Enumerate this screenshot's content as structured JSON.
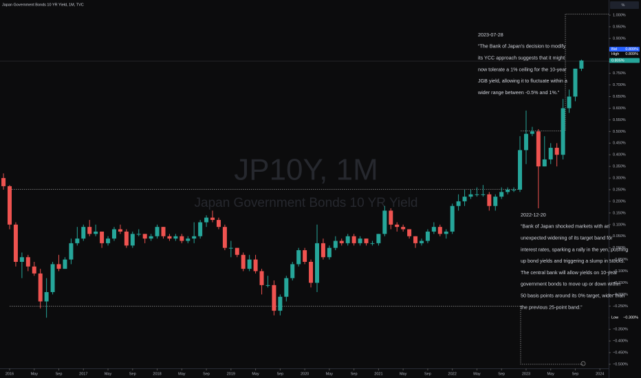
{
  "chart_data": {
    "type": "candlestick",
    "title": "Japan Government Bonds 10 YR Yield, 1M, TVC",
    "watermark": [
      "JP10Y, 1M",
      "Japan Government Bonds 10 YR Yield"
    ],
    "axis_unit": "%",
    "categories": [
      "2015-12",
      "2016-01",
      "2016-02",
      "2016-03",
      "2016-04",
      "2016-05",
      "2016-06",
      "2016-07",
      "2016-08",
      "2016-09",
      "2016-10",
      "2016-11",
      "2016-12",
      "2017-01",
      "2017-02",
      "2017-03",
      "2017-04",
      "2017-05",
      "2017-06",
      "2017-07",
      "2017-08",
      "2017-09",
      "2017-10",
      "2017-11",
      "2017-12",
      "2018-01",
      "2018-02",
      "2018-03",
      "2018-04",
      "2018-05",
      "2018-06",
      "2018-07",
      "2018-08",
      "2018-09",
      "2018-10",
      "2018-11",
      "2018-12",
      "2019-01",
      "2019-02",
      "2019-03",
      "2019-04",
      "2019-05",
      "2019-06",
      "2019-07",
      "2019-08",
      "2019-09",
      "2019-10",
      "2019-11",
      "2019-12",
      "2020-01",
      "2020-02",
      "2020-03",
      "2020-04",
      "2020-05",
      "2020-06",
      "2020-07",
      "2020-08",
      "2020-09",
      "2020-10",
      "2020-11",
      "2020-12",
      "2021-01",
      "2021-02",
      "2021-03",
      "2021-04",
      "2021-05",
      "2021-06",
      "2021-07",
      "2021-08",
      "2021-09",
      "2021-10",
      "2021-11",
      "2021-12",
      "2022-01",
      "2022-02",
      "2022-03",
      "2022-04",
      "2022-05",
      "2022-06",
      "2022-07",
      "2022-08",
      "2022-09",
      "2022-10",
      "2022-11",
      "2022-12",
      "2023-01",
      "2023-02",
      "2023-03",
      "2023-04",
      "2023-05",
      "2023-06",
      "2023-07",
      "2023-08",
      "2023-09",
      "2023-10"
    ],
    "open": [
      0.3,
      0.265,
      0.1,
      -0.06,
      -0.04,
      -0.08,
      -0.11,
      -0.23,
      -0.19,
      -0.07,
      -0.09,
      -0.05,
      0.02,
      0.04,
      0.09,
      0.06,
      0.07,
      0.02,
      0.04,
      0.08,
      0.07,
      0.01,
      0.06,
      0.06,
      0.04,
      0.05,
      0.09,
      0.05,
      0.04,
      0.05,
      0.03,
      0.04,
      0.05,
      0.11,
      0.13,
      0.12,
      0.09,
      0.0,
      0.0,
      -0.03,
      -0.09,
      -0.05,
      -0.1,
      -0.16,
      -0.16,
      -0.27,
      -0.21,
      -0.13,
      -0.07,
      -0.01,
      -0.06,
      -0.15,
      0.02,
      -0.04,
      0.0,
      0.03,
      0.02,
      0.05,
      0.02,
      0.04,
      0.02,
      0.02,
      0.06,
      0.16,
      0.1,
      0.09,
      0.08,
      0.05,
      0.02,
      0.03,
      0.07,
      0.09,
      0.06,
      0.07,
      0.18,
      0.2,
      0.22,
      0.23,
      0.23,
      0.23,
      0.18,
      0.22,
      0.24,
      0.25,
      0.25,
      0.42,
      0.49,
      0.5,
      0.35,
      0.38,
      0.43,
      0.4,
      0.6,
      0.65,
      0.77
    ],
    "high": [
      0.32,
      0.27,
      0.11,
      -0.02,
      -0.03,
      -0.06,
      -0.09,
      -0.13,
      -0.06,
      -0.03,
      -0.04,
      0.04,
      0.09,
      0.1,
      0.12,
      0.1,
      0.07,
      0.05,
      0.09,
      0.1,
      0.08,
      0.07,
      0.08,
      0.06,
      0.06,
      0.1,
      0.09,
      0.06,
      0.06,
      0.06,
      0.05,
      0.11,
      0.12,
      0.14,
      0.16,
      0.13,
      0.1,
      0.03,
      0.0,
      -0.02,
      -0.03,
      -0.03,
      -0.09,
      -0.12,
      -0.14,
      -0.2,
      -0.12,
      -0.06,
      0.0,
      0.0,
      -0.05,
      0.1,
      0.04,
      0.01,
      0.05,
      0.04,
      0.06,
      0.06,
      0.05,
      0.04,
      0.03,
      0.06,
      0.18,
      0.17,
      0.11,
      0.1,
      0.08,
      0.05,
      0.04,
      0.08,
      0.11,
      0.1,
      0.08,
      0.19,
      0.23,
      0.25,
      0.25,
      0.26,
      0.27,
      0.24,
      0.23,
      0.26,
      0.26,
      0.26,
      0.48,
      0.59,
      0.52,
      0.51,
      0.48,
      0.45,
      0.45,
      0.64,
      0.68,
      0.77,
      0.809
    ],
    "low": [
      0.25,
      0.08,
      -0.08,
      -0.13,
      -0.1,
      -0.12,
      -0.26,
      -0.3,
      -0.2,
      -0.1,
      -0.09,
      -0.07,
      0.01,
      0.03,
      0.05,
      0.05,
      0.0,
      0.01,
      0.03,
      0.06,
      0.0,
      0.0,
      0.05,
      0.02,
      0.03,
      0.04,
      0.04,
      0.03,
      0.03,
      0.02,
      0.02,
      0.02,
      0.04,
      0.09,
      0.11,
      0.08,
      -0.01,
      -0.04,
      -0.04,
      -0.1,
      -0.1,
      -0.11,
      -0.2,
      -0.17,
      -0.29,
      -0.29,
      -0.23,
      -0.14,
      -0.08,
      -0.07,
      -0.17,
      -0.19,
      -0.05,
      -0.05,
      -0.01,
      0.01,
      0.01,
      0.01,
      0.01,
      0.01,
      0.01,
      0.01,
      0.05,
      0.08,
      0.07,
      0.07,
      0.04,
      0.0,
      0.01,
      0.02,
      0.06,
      0.05,
      0.04,
      0.06,
      0.16,
      0.18,
      0.21,
      0.22,
      0.22,
      0.16,
      0.16,
      0.21,
      0.23,
      0.24,
      0.24,
      0.36,
      0.48,
      0.17,
      0.35,
      0.36,
      0.35,
      0.38,
      0.58,
      0.63,
      0.76
    ],
    "close": [
      0.265,
      0.1,
      -0.06,
      -0.04,
      -0.08,
      -0.11,
      -0.23,
      -0.19,
      -0.07,
      -0.09,
      -0.05,
      0.02,
      0.04,
      0.09,
      0.06,
      0.07,
      0.02,
      0.04,
      0.08,
      0.07,
      0.01,
      0.06,
      0.06,
      0.04,
      0.05,
      0.09,
      0.05,
      0.04,
      0.05,
      0.03,
      0.04,
      0.05,
      0.11,
      0.13,
      0.12,
      0.09,
      0.0,
      0.0,
      -0.03,
      -0.09,
      -0.05,
      -0.1,
      -0.16,
      -0.16,
      -0.27,
      -0.21,
      -0.13,
      -0.07,
      -0.01,
      -0.06,
      -0.15,
      0.02,
      -0.04,
      0.0,
      0.03,
      0.02,
      0.05,
      0.02,
      0.04,
      0.02,
      0.02,
      0.06,
      0.16,
      0.1,
      0.09,
      0.08,
      0.05,
      0.02,
      0.03,
      0.07,
      0.09,
      0.06,
      0.07,
      0.18,
      0.2,
      0.22,
      0.23,
      0.23,
      0.23,
      0.18,
      0.22,
      0.24,
      0.25,
      0.25,
      0.42,
      0.49,
      0.5,
      0.35,
      0.38,
      0.43,
      0.4,
      0.6,
      0.65,
      0.77,
      0.805
    ],
    "up_color": "#26a69a",
    "down_color": "#ef5350",
    "ylim": [
      -0.5,
      1.0
    ],
    "yticks": [
      {
        "value": 1.0,
        "label": "1.000%"
      },
      {
        "value": 0.95,
        "label": "0.950%"
      },
      {
        "value": 0.9,
        "label": "0.900%"
      },
      {
        "value": 0.85,
        "label": "0.850%"
      },
      {
        "value": 0.8,
        "label": "0.800%"
      },
      {
        "value": 0.75,
        "label": "0.750%"
      },
      {
        "value": 0.7,
        "label": "0.700%"
      },
      {
        "value": 0.65,
        "label": "0.650%"
      },
      {
        "value": 0.6,
        "label": "0.600%"
      },
      {
        "value": 0.55,
        "label": "0.550%"
      },
      {
        "value": 0.5,
        "label": "0.500%"
      },
      {
        "value": 0.45,
        "label": "0.450%"
      },
      {
        "value": 0.4,
        "label": "0.400%"
      },
      {
        "value": 0.35,
        "label": "0.350%"
      },
      {
        "value": 0.3,
        "label": "0.300%"
      },
      {
        "value": 0.25,
        "label": "0.250%"
      },
      {
        "value": 0.2,
        "label": "0.200%"
      },
      {
        "value": 0.15,
        "label": "0.150%"
      },
      {
        "value": 0.1,
        "label": "0.100%"
      },
      {
        "value": 0.05,
        "label": "0.050%"
      },
      {
        "value": 0,
        "label": "0.000%"
      },
      {
        "value": -0.05,
        "label": "−0.050%"
      },
      {
        "value": -0.1,
        "label": "−0.100%"
      },
      {
        "value": -0.15,
        "label": "−0.150%"
      },
      {
        "value": -0.2,
        "label": "−0.200%"
      },
      {
        "value": -0.25,
        "label": "−0.250%"
      },
      {
        "value": -0.3,
        "label": "−0.300%"
      },
      {
        "value": -0.35,
        "label": "−0.350%"
      },
      {
        "value": -0.4,
        "label": "−0.400%"
      },
      {
        "value": -0.45,
        "label": "−0.450%"
      },
      {
        "value": -0.5,
        "label": "−0.500%"
      }
    ],
    "xticks": [
      {
        "value": "2016-01",
        "label": "2016"
      },
      {
        "value": "2016-05",
        "label": "May"
      },
      {
        "value": "2016-09",
        "label": "Sep"
      },
      {
        "value": "2017-01",
        "label": "2017"
      },
      {
        "value": "2017-05",
        "label": "May"
      },
      {
        "value": "2017-09",
        "label": "Sep"
      },
      {
        "value": "2018-01",
        "label": "2018"
      },
      {
        "value": "2018-05",
        "label": "May"
      },
      {
        "value": "2018-09",
        "label": "Sep"
      },
      {
        "value": "2019-01",
        "label": "2019"
      },
      {
        "value": "2019-05",
        "label": "May"
      },
      {
        "value": "2019-09",
        "label": "Sep"
      },
      {
        "value": "2020-01",
        "label": "2020"
      },
      {
        "value": "2020-05",
        "label": "May"
      },
      {
        "value": "2020-09",
        "label": "Sep"
      },
      {
        "value": "2021-01",
        "label": "2021"
      },
      {
        "value": "2021-05",
        "label": "May"
      },
      {
        "value": "2021-09",
        "label": "Sep"
      },
      {
        "value": "2022-01",
        "label": "2022"
      },
      {
        "value": "2022-05",
        "label": "May"
      },
      {
        "value": "2022-09",
        "label": "Sep"
      },
      {
        "value": "2023-01",
        "label": "2023"
      },
      {
        "value": "2023-05",
        "label": "May"
      },
      {
        "value": "2023-09",
        "label": "Sep"
      },
      {
        "value": "2024-01",
        "label": "2024"
      }
    ],
    "price_tags": [
      {
        "name": "Bid",
        "value": 0.809,
        "label": "0.809%",
        "color": "#2962ff"
      },
      {
        "name": "High",
        "value": 0.809,
        "label": "0.809%",
        "color": "#0c0c0d"
      },
      {
        "value": 0.805,
        "label": "0.805%",
        "color": "#26a69a"
      },
      {
        "name": "Low",
        "value": -0.3,
        "label": "−0.300%",
        "color": "#0c0c0d"
      }
    ],
    "annotations": [
      {
        "date": "2023-07-28",
        "lines": [
          "“The Bank of Japan's decision to modify",
          "its YCC approach suggests that it might",
          "now tolerate a 1% ceiling for the 10-year",
          "JGB yield, allowing it to fluctuate within a",
          "wider range between -0.5% and 1%.”"
        ]
      },
      {
        "date": "2022-12-20",
        "lines": [
          "“Bank of Japan shocked markets with an",
          "unexpected widening of its target band for",
          "interest rates, sparking a rally in the yen, pushing",
          "up bond yields and triggering a slump in stocks.",
          "The central bank will allow yields on 10-year",
          "government bonds to move up or down within",
          "50 basis points around its 0% target, wider than",
          "the previous 25-point band.”"
        ]
      }
    ]
  }
}
